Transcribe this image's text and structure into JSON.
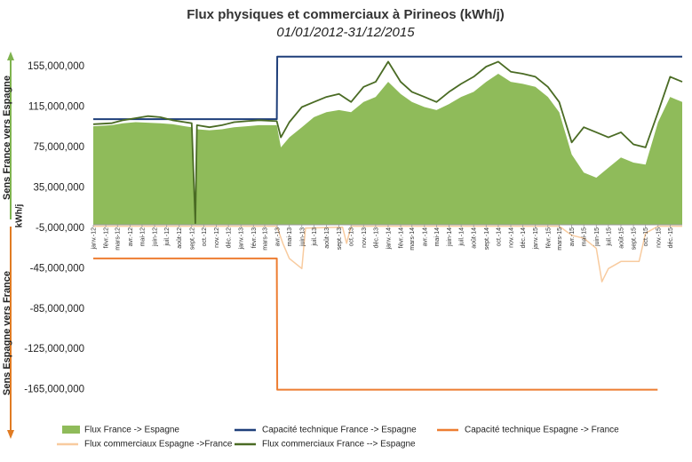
{
  "chart_data": {
    "type": "area",
    "title": "Flux physiques et commerciaux à Pirineos (kWh/j)",
    "subtitle": "01/01/2012-31/12/2015",
    "ylabel_unit": "kWh/j",
    "ylabel_top": "Sens France vers Espagne",
    "ylabel_bottom": "Sens Espagne vers France",
    "ylim": [
      -175000000,
      170000000
    ],
    "yticks": [
      155000000,
      115000000,
      75000000,
      35000000,
      -5000000,
      -45000000,
      -85000000,
      -125000000,
      -165000000
    ],
    "ytick_labels": [
      "155,000,000",
      "115,000,000",
      "75,000,000",
      "35,000,000",
      "-5,000,000",
      "-45,000,000",
      "-85,000,000",
      "-125,000,000",
      "-165,000,000"
    ],
    "xlim": [
      "2012-01-01",
      "2015-12-31"
    ],
    "x_tick_labels": [
      {
        "x": "2012-01-01",
        "label": "janv.-12"
      },
      {
        "x": "2012-02-01",
        "label": "févr.-12"
      },
      {
        "x": "2012-03-01",
        "label": "mars-12"
      },
      {
        "x": "2012-04-01",
        "label": "avr.-12"
      },
      {
        "x": "2012-05-01",
        "label": "mai-12"
      },
      {
        "x": "2012-06-01",
        "label": "juin-12"
      },
      {
        "x": "2012-07-01",
        "label": "juil.-12"
      },
      {
        "x": "2012-08-01",
        "label": "août-12"
      },
      {
        "x": "2012-09-01",
        "label": "sept.-12"
      },
      {
        "x": "2012-10-01",
        "label": "oct.-12"
      },
      {
        "x": "2012-11-01",
        "label": "nov.-12"
      },
      {
        "x": "2012-12-01",
        "label": "déc.-12"
      },
      {
        "x": "2013-01-01",
        "label": "janv.-13"
      },
      {
        "x": "2013-02-01",
        "label": "févr.-13"
      },
      {
        "x": "2013-03-01",
        "label": "mars-13"
      },
      {
        "x": "2013-04-01",
        "label": "avr.-13"
      },
      {
        "x": "2013-05-01",
        "label": "mai-13"
      },
      {
        "x": "2013-06-01",
        "label": "juin-13"
      },
      {
        "x": "2013-07-01",
        "label": "juil.-13"
      },
      {
        "x": "2013-08-01",
        "label": "août-13"
      },
      {
        "x": "2013-09-01",
        "label": "sept.-13"
      },
      {
        "x": "2013-10-01",
        "label": "oct.-13"
      },
      {
        "x": "2013-11-01",
        "label": "nov.-13"
      },
      {
        "x": "2013-12-01",
        "label": "déc.-13"
      },
      {
        "x": "2014-01-01",
        "label": "janv.-14"
      },
      {
        "x": "2014-02-01",
        "label": "févr.-14"
      },
      {
        "x": "2014-03-01",
        "label": "mars-14"
      },
      {
        "x": "2014-04-01",
        "label": "avr.-14"
      },
      {
        "x": "2014-05-01",
        "label": "mai-14"
      },
      {
        "x": "2014-06-01",
        "label": "juin-14"
      },
      {
        "x": "2014-07-01",
        "label": "juil.-14"
      },
      {
        "x": "2014-08-01",
        "label": "août-14"
      },
      {
        "x": "2014-09-01",
        "label": "sept.-14"
      },
      {
        "x": "2014-10-01",
        "label": "oct.-14"
      },
      {
        "x": "2014-11-01",
        "label": "nov.-14"
      },
      {
        "x": "2014-12-01",
        "label": "déc.-14"
      },
      {
        "x": "2015-01-01",
        "label": "janv.-15"
      },
      {
        "x": "2015-02-01",
        "label": "févr.-15"
      },
      {
        "x": "2015-03-01",
        "label": "mars-15"
      },
      {
        "x": "2015-04-01",
        "label": "avr.-15"
      },
      {
        "x": "2015-05-01",
        "label": "mai-15"
      },
      {
        "x": "2015-06-01",
        "label": "juin-15"
      },
      {
        "x": "2015-07-01",
        "label": "juil.-15"
      },
      {
        "x": "2015-08-01",
        "label": "août-15"
      },
      {
        "x": "2015-09-01",
        "label": "sept.-15"
      },
      {
        "x": "2015-10-01",
        "label": "oct.-15"
      },
      {
        "x": "2015-11-01",
        "label": "nov.-15"
      },
      {
        "x": "2015-12-01",
        "label": "déc.-15"
      }
    ],
    "series": [
      {
        "name": "Flux  France -> Espagne",
        "kind": "area",
        "color": "#8fbb5a",
        "points": [
          [
            "2012-01-01",
            96000000
          ],
          [
            "2012-02-15",
            97000000
          ],
          [
            "2012-03-15",
            99000000
          ],
          [
            "2012-04-15",
            100000000
          ],
          [
            "2012-06-15",
            99000000
          ],
          [
            "2012-07-15",
            98000000
          ],
          [
            "2012-08-15",
            96000000
          ],
          [
            "2012-09-01",
            95000000
          ],
          [
            "2012-09-10",
            -3000000
          ],
          [
            "2012-09-14",
            93000000
          ],
          [
            "2012-10-15",
            92000000
          ],
          [
            "2012-11-15",
            93000000
          ],
          [
            "2012-12-15",
            95000000
          ],
          [
            "2013-01-15",
            96000000
          ],
          [
            "2013-02-15",
            97000000
          ],
          [
            "2013-03-31",
            97000000
          ],
          [
            "2013-04-10",
            75000000
          ],
          [
            "2013-05-01",
            85000000
          ],
          [
            "2013-06-01",
            95000000
          ],
          [
            "2013-07-01",
            105000000
          ],
          [
            "2013-08-01",
            110000000
          ],
          [
            "2013-09-01",
            112000000
          ],
          [
            "2013-10-01",
            110000000
          ],
          [
            "2013-11-01",
            120000000
          ],
          [
            "2013-12-01",
            125000000
          ],
          [
            "2014-01-01",
            140000000
          ],
          [
            "2014-02-01",
            128000000
          ],
          [
            "2014-03-01",
            120000000
          ],
          [
            "2014-04-01",
            115000000
          ],
          [
            "2014-05-01",
            112000000
          ],
          [
            "2014-06-01",
            118000000
          ],
          [
            "2014-07-01",
            125000000
          ],
          [
            "2014-08-01",
            130000000
          ],
          [
            "2014-09-01",
            140000000
          ],
          [
            "2014-10-01",
            148000000
          ],
          [
            "2014-11-01",
            140000000
          ],
          [
            "2014-12-01",
            138000000
          ],
          [
            "2015-01-01",
            135000000
          ],
          [
            "2015-02-01",
            125000000
          ],
          [
            "2015-03-01",
            110000000
          ],
          [
            "2015-04-01",
            68000000
          ],
          [
            "2015-05-01",
            50000000
          ],
          [
            "2015-06-01",
            45000000
          ],
          [
            "2015-07-01",
            55000000
          ],
          [
            "2015-08-01",
            65000000
          ],
          [
            "2015-09-01",
            60000000
          ],
          [
            "2015-10-01",
            58000000
          ],
          [
            "2015-11-01",
            100000000
          ],
          [
            "2015-12-01",
            125000000
          ],
          [
            "2015-12-31",
            120000000
          ]
        ]
      },
      {
        "name": "Capacité technique France -> Espagne",
        "kind": "line",
        "color": "#1f3f7a",
        "points": [
          [
            "2012-01-01",
            103000000
          ],
          [
            "2013-03-31",
            103000000
          ],
          [
            "2013-04-01",
            165000000
          ],
          [
            "2015-12-31",
            165000000
          ]
        ]
      },
      {
        "name": "Capacité technique Espagne -> France",
        "kind": "line",
        "color": "#ed7d31",
        "points": [
          [
            "2012-01-01",
            -35000000
          ],
          [
            "2013-03-31",
            -35000000
          ],
          [
            "2013-04-01",
            -165000000
          ],
          [
            "2015-10-31",
            -165000000
          ]
        ]
      },
      {
        "name": "Flux commerciaux Espagne ->France",
        "kind": "line",
        "color": "#f8cb9f",
        "points": [
          [
            "2012-01-01",
            -3000000
          ],
          [
            "2013-03-31",
            -3000000
          ],
          [
            "2013-04-15",
            -20000000
          ],
          [
            "2013-05-01",
            -35000000
          ],
          [
            "2013-06-01",
            -45000000
          ],
          [
            "2013-06-10",
            -5000000
          ],
          [
            "2013-09-10",
            -4000000
          ],
          [
            "2013-09-20",
            -20000000
          ],
          [
            "2013-10-01",
            -3000000
          ],
          [
            "2015-03-01",
            -3000000
          ],
          [
            "2015-04-01",
            -12000000
          ],
          [
            "2015-05-01",
            -15000000
          ],
          [
            "2015-06-01",
            -25000000
          ],
          [
            "2015-06-15",
            -58000000
          ],
          [
            "2015-07-01",
            -45000000
          ],
          [
            "2015-08-01",
            -38000000
          ],
          [
            "2015-09-15",
            -38000000
          ],
          [
            "2015-10-01",
            -10000000
          ],
          [
            "2015-11-01",
            -3000000
          ],
          [
            "2015-12-31",
            -3000000
          ]
        ]
      },
      {
        "name": "Flux commerciaux France --> Espagne",
        "kind": "line",
        "color": "#4a6b24",
        "points": [
          [
            "2012-01-01",
            98000000
          ],
          [
            "2012-02-15",
            99000000
          ],
          [
            "2012-03-15",
            102000000
          ],
          [
            "2012-04-15",
            104000000
          ],
          [
            "2012-05-15",
            106000000
          ],
          [
            "2012-06-15",
            105000000
          ],
          [
            "2012-07-15",
            102000000
          ],
          [
            "2012-08-15",
            100000000
          ],
          [
            "2012-09-01",
            99000000
          ],
          [
            "2012-09-10",
            0
          ],
          [
            "2012-09-14",
            97000000
          ],
          [
            "2012-10-15",
            95000000
          ],
          [
            "2012-11-15",
            97000000
          ],
          [
            "2012-12-15",
            100000000
          ],
          [
            "2013-01-15",
            101000000
          ],
          [
            "2013-02-15",
            102000000
          ],
          [
            "2013-03-31",
            101000000
          ],
          [
            "2013-04-10",
            85000000
          ],
          [
            "2013-05-01",
            100000000
          ],
          [
            "2013-06-01",
            115000000
          ],
          [
            "2013-07-01",
            120000000
          ],
          [
            "2013-08-01",
            125000000
          ],
          [
            "2013-09-01",
            128000000
          ],
          [
            "2013-10-01",
            120000000
          ],
          [
            "2013-11-01",
            135000000
          ],
          [
            "2013-12-01",
            140000000
          ],
          [
            "2014-01-01",
            160000000
          ],
          [
            "2014-02-01",
            140000000
          ],
          [
            "2014-03-01",
            130000000
          ],
          [
            "2014-04-01",
            125000000
          ],
          [
            "2014-05-01",
            120000000
          ],
          [
            "2014-06-01",
            130000000
          ],
          [
            "2014-07-01",
            138000000
          ],
          [
            "2014-08-01",
            145000000
          ],
          [
            "2014-09-01",
            155000000
          ],
          [
            "2014-10-01",
            160000000
          ],
          [
            "2014-11-01",
            150000000
          ],
          [
            "2014-12-01",
            148000000
          ],
          [
            "2015-01-01",
            145000000
          ],
          [
            "2015-02-01",
            135000000
          ],
          [
            "2015-03-01",
            120000000
          ],
          [
            "2015-04-01",
            80000000
          ],
          [
            "2015-05-01",
            95000000
          ],
          [
            "2015-06-01",
            90000000
          ],
          [
            "2015-07-01",
            85000000
          ],
          [
            "2015-08-01",
            90000000
          ],
          [
            "2015-09-01",
            78000000
          ],
          [
            "2015-10-01",
            75000000
          ],
          [
            "2015-11-01",
            110000000
          ],
          [
            "2015-12-01",
            145000000
          ],
          [
            "2015-12-31",
            140000000
          ]
        ]
      }
    ],
    "legend_position": "bottom"
  }
}
